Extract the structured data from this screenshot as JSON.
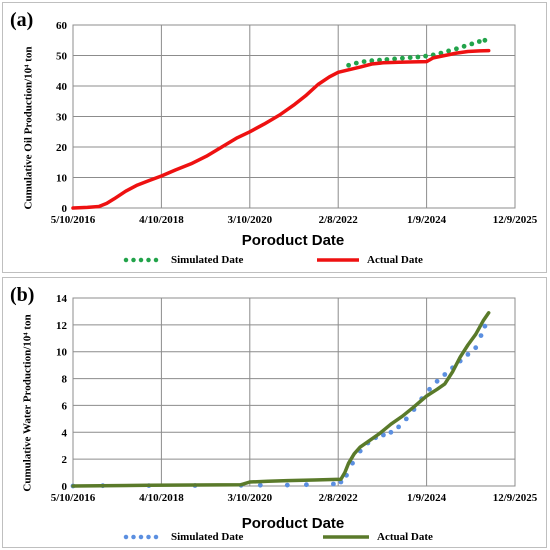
{
  "chart_data": [
    {
      "panel_label": "(a)",
      "type": "line",
      "ylabel": "Cumulative Oil Production/10⁴ ton",
      "xlabel": "Poroduct Date",
      "x_ticks": [
        "5/10/2016",
        "4/10/2018",
        "3/10/2020",
        "2/8/2022",
        "1/9/2024",
        "12/9/2025"
      ],
      "x_range": [
        "2016-05-10",
        "2025-12-09"
      ],
      "ylim": [
        0,
        60
      ],
      "y_ticks": [
        0,
        10,
        20,
        30,
        40,
        50,
        60
      ],
      "grid": true,
      "legend_position": "bottom",
      "series": [
        {
          "name": "Simulated Date",
          "style": "dotted",
          "color": "#22a34a",
          "points": [
            [
              "2022-05-01",
              46.8
            ],
            [
              "2022-07-01",
              47.5
            ],
            [
              "2022-09-01",
              48.0
            ],
            [
              "2022-11-01",
              48.3
            ],
            [
              "2023-01-01",
              48.5
            ],
            [
              "2023-03-01",
              48.7
            ],
            [
              "2023-05-01",
              48.9
            ],
            [
              "2023-07-01",
              49.1
            ],
            [
              "2023-09-01",
              49.3
            ],
            [
              "2023-11-01",
              49.5
            ],
            [
              "2024-01-01",
              49.8
            ],
            [
              "2024-03-01",
              50.2
            ],
            [
              "2024-05-01",
              50.8
            ],
            [
              "2024-07-01",
              51.5
            ],
            [
              "2024-09-01",
              52.2
            ],
            [
              "2024-11-01",
              53.0
            ],
            [
              "2025-01-01",
              53.8
            ],
            [
              "2025-03-01",
              54.6
            ],
            [
              "2025-04-15",
              55.0
            ]
          ]
        },
        {
          "name": "Actual Date",
          "style": "solid",
          "color": "#ee1111",
          "points": [
            [
              "2016-05-10",
              0.0
            ],
            [
              "2016-09-01",
              0.2
            ],
            [
              "2016-12-01",
              0.5
            ],
            [
              "2017-02-01",
              1.5
            ],
            [
              "2017-04-01",
              3.0
            ],
            [
              "2017-07-01",
              5.5
            ],
            [
              "2017-10-01",
              7.5
            ],
            [
              "2018-01-01",
              9.0
            ],
            [
              "2018-04-10",
              10.5
            ],
            [
              "2018-08-01",
              12.5
            ],
            [
              "2018-12-01",
              14.5
            ],
            [
              "2019-04-01",
              17.0
            ],
            [
              "2019-08-01",
              20.0
            ],
            [
              "2019-12-01",
              23.0
            ],
            [
              "2020-03-10",
              25.0
            ],
            [
              "2020-07-01",
              27.5
            ],
            [
              "2020-11-01",
              30.5
            ],
            [
              "2021-03-01",
              34.0
            ],
            [
              "2021-06-01",
              37.0
            ],
            [
              "2021-09-01",
              40.5
            ],
            [
              "2021-12-01",
              43.0
            ],
            [
              "2022-02-08",
              44.5
            ],
            [
              "2022-05-01",
              45.3
            ],
            [
              "2022-08-01",
              46.2
            ],
            [
              "2022-11-01",
              47.2
            ],
            [
              "2023-02-01",
              47.6
            ],
            [
              "2023-06-01",
              47.8
            ],
            [
              "2023-10-01",
              47.9
            ],
            [
              "2024-01-09",
              48.0
            ],
            [
              "2024-03-01",
              49.2
            ],
            [
              "2024-06-01",
              50.0
            ],
            [
              "2024-09-01",
              50.8
            ],
            [
              "2024-12-01",
              51.3
            ],
            [
              "2025-03-01",
              51.5
            ],
            [
              "2025-05-15",
              51.6
            ]
          ]
        }
      ]
    },
    {
      "panel_label": "(b)",
      "type": "line",
      "ylabel": "Cumulative Water Production/10⁴ ton",
      "xlabel": "Poroduct Date",
      "x_ticks": [
        "5/10/2016",
        "4/10/2018",
        "3/10/2020",
        "2/8/2022",
        "1/9/2024",
        "12/9/2025"
      ],
      "x_range": [
        "2016-05-10",
        "2025-12-09"
      ],
      "ylim": [
        0,
        14
      ],
      "y_ticks": [
        0,
        2,
        4,
        6,
        8,
        10,
        12,
        14
      ],
      "grid": true,
      "legend_position": "bottom",
      "series": [
        {
          "name": "Simulated Date",
          "style": "dotted",
          "color": "#5b8fe0",
          "points": [
            [
              "2016-05-10",
              0.0
            ],
            [
              "2017-01-01",
              0.02
            ],
            [
              "2018-01-01",
              0.03
            ],
            [
              "2019-01-01",
              0.04
            ],
            [
              "2020-01-01",
              0.05
            ],
            [
              "2020-06-01",
              0.06
            ],
            [
              "2021-01-01",
              0.07
            ],
            [
              "2021-06-01",
              0.1
            ],
            [
              "2022-01-01",
              0.15
            ],
            [
              "2022-03-01",
              0.3
            ],
            [
              "2022-04-15",
              0.8
            ],
            [
              "2022-06-01",
              1.7
            ],
            [
              "2022-08-01",
              2.6
            ],
            [
              "2022-10-01",
              3.2
            ],
            [
              "2022-12-01",
              3.6
            ],
            [
              "2023-02-01",
              3.8
            ],
            [
              "2023-04-01",
              4.0
            ],
            [
              "2023-06-01",
              4.4
            ],
            [
              "2023-08-01",
              5.0
            ],
            [
              "2023-10-01",
              5.7
            ],
            [
              "2023-12-01",
              6.5
            ],
            [
              "2024-02-01",
              7.2
            ],
            [
              "2024-04-01",
              7.8
            ],
            [
              "2024-06-01",
              8.3
            ],
            [
              "2024-08-01",
              8.8
            ],
            [
              "2024-10-01",
              9.3
            ],
            [
              "2024-12-01",
              9.8
            ],
            [
              "2025-02-01",
              10.3
            ],
            [
              "2025-03-15",
              11.2
            ],
            [
              "2025-04-15",
              11.9
            ]
          ]
        },
        {
          "name": "Actual Date",
          "style": "solid",
          "color": "#5a7a2a",
          "points": [
            [
              "2016-05-10",
              0.0
            ],
            [
              "2018-01-01",
              0.05
            ],
            [
              "2020-01-01",
              0.1
            ],
            [
              "2020-03-10",
              0.3
            ],
            [
              "2020-08-01",
              0.35
            ],
            [
              "2021-01-01",
              0.4
            ],
            [
              "2021-08-01",
              0.45
            ],
            [
              "2022-03-01",
              0.5
            ],
            [
              "2022-04-01",
              1.0
            ],
            [
              "2022-05-01",
              1.7
            ],
            [
              "2022-06-15",
              2.4
            ],
            [
              "2022-08-01",
              2.9
            ],
            [
              "2022-10-01",
              3.3
            ],
            [
              "2023-01-01",
              3.9
            ],
            [
              "2023-04-01",
              4.6
            ],
            [
              "2023-07-01",
              5.2
            ],
            [
              "2023-10-01",
              5.9
            ],
            [
              "2024-01-09",
              6.7
            ],
            [
              "2024-04-01",
              7.2
            ],
            [
              "2024-06-01",
              7.6
            ],
            [
              "2024-08-01",
              8.5
            ],
            [
              "2024-10-01",
              9.6
            ],
            [
              "2024-12-01",
              10.5
            ],
            [
              "2025-02-01",
              11.3
            ],
            [
              "2025-04-01",
              12.3
            ],
            [
              "2025-05-15",
              12.9
            ]
          ]
        }
      ]
    }
  ]
}
